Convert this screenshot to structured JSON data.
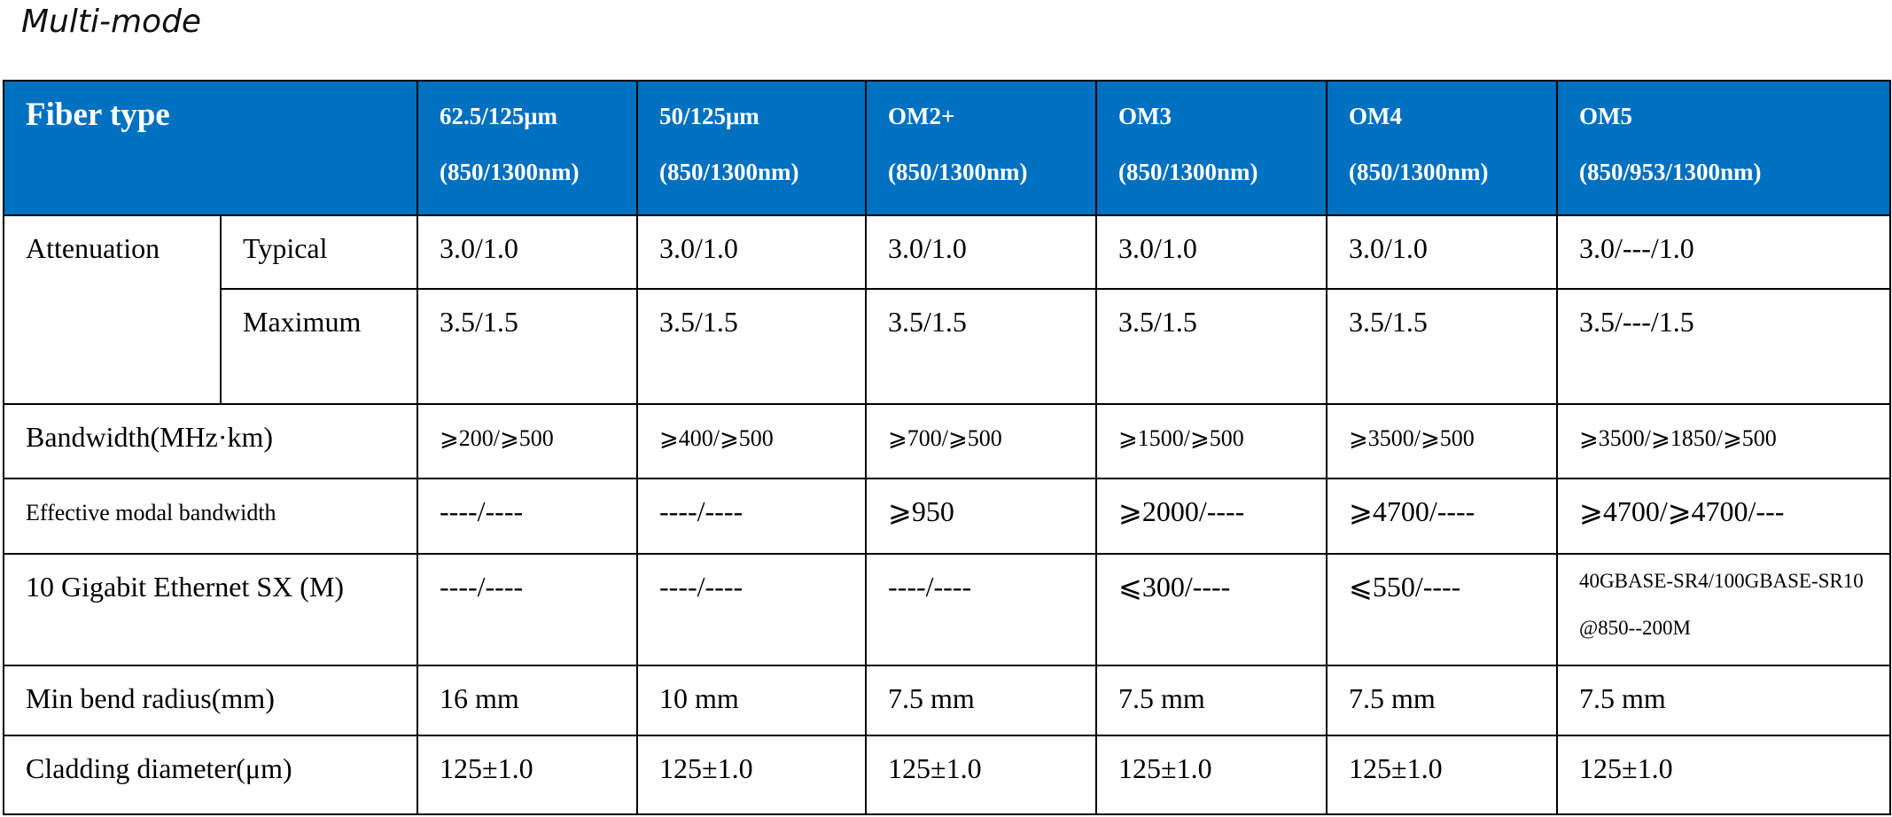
{
  "title": "Multi-mode",
  "table": {
    "header": {
      "label": "Fiber type",
      "columns": [
        {
          "name": "62.5/125μm",
          "wavelength": "(850/1300nm)"
        },
        {
          "name": "50/125μm",
          "wavelength": "(850/1300nm)"
        },
        {
          "name": "OM2+",
          "wavelength": "(850/1300nm)"
        },
        {
          "name": "OM3",
          "wavelength": "(850/1300nm)"
        },
        {
          "name": "OM4",
          "wavelength": "(850/1300nm)"
        },
        {
          "name": "OM5",
          "wavelength": "(850/953/1300nm)"
        }
      ]
    },
    "rows": [
      {
        "label": "Attenuation",
        "sublabel": "Typical",
        "values": [
          "3.0/1.0",
          "3.0/1.0",
          "3.0/1.0",
          "3.0/1.0",
          "3.0/1.0",
          "3.0/---/1.0"
        ]
      },
      {
        "sublabel": "Maximum",
        "values": [
          "3.5/1.5",
          "3.5/1.5",
          "3.5/1.5",
          "3.5/1.5",
          "3.5/1.5",
          "3.5/---/1.5"
        ]
      },
      {
        "label": "Bandwidth(MHz·km)",
        "values": [
          "⩾200/⩾500",
          "⩾400/⩾500",
          "⩾700/⩾500",
          "⩾1500/⩾500",
          "⩾3500/⩾500",
          "⩾3500/⩾1850/⩾500"
        ]
      },
      {
        "label": "Effective modal bandwidth",
        "values": [
          "----/----",
          "----/----",
          "⩾950",
          "⩾2000/----",
          "⩾4700/----",
          "⩾4700/⩾4700/---"
        ]
      },
      {
        "label": "10 Gigabit Ethernet SX (M)",
        "values": [
          "----/----",
          "----/----",
          "----/----",
          "⩽300/----",
          "⩽550/----",
          "40GBASE-SR4/100GBASE-SR10@850--200M"
        ]
      },
      {
        "label": "Min bend radius(mm)",
        "values": [
          "16 mm",
          "10 mm",
          "7.5 mm",
          "7.5 mm",
          "7.5 mm",
          "7.5 mm"
        ]
      },
      {
        "label": "Cladding diameter(μm)",
        "values": [
          "125±1.0",
          "125±1.0",
          "125±1.0",
          "125±1.0",
          "125±1.0",
          "125±1.0"
        ]
      }
    ]
  }
}
